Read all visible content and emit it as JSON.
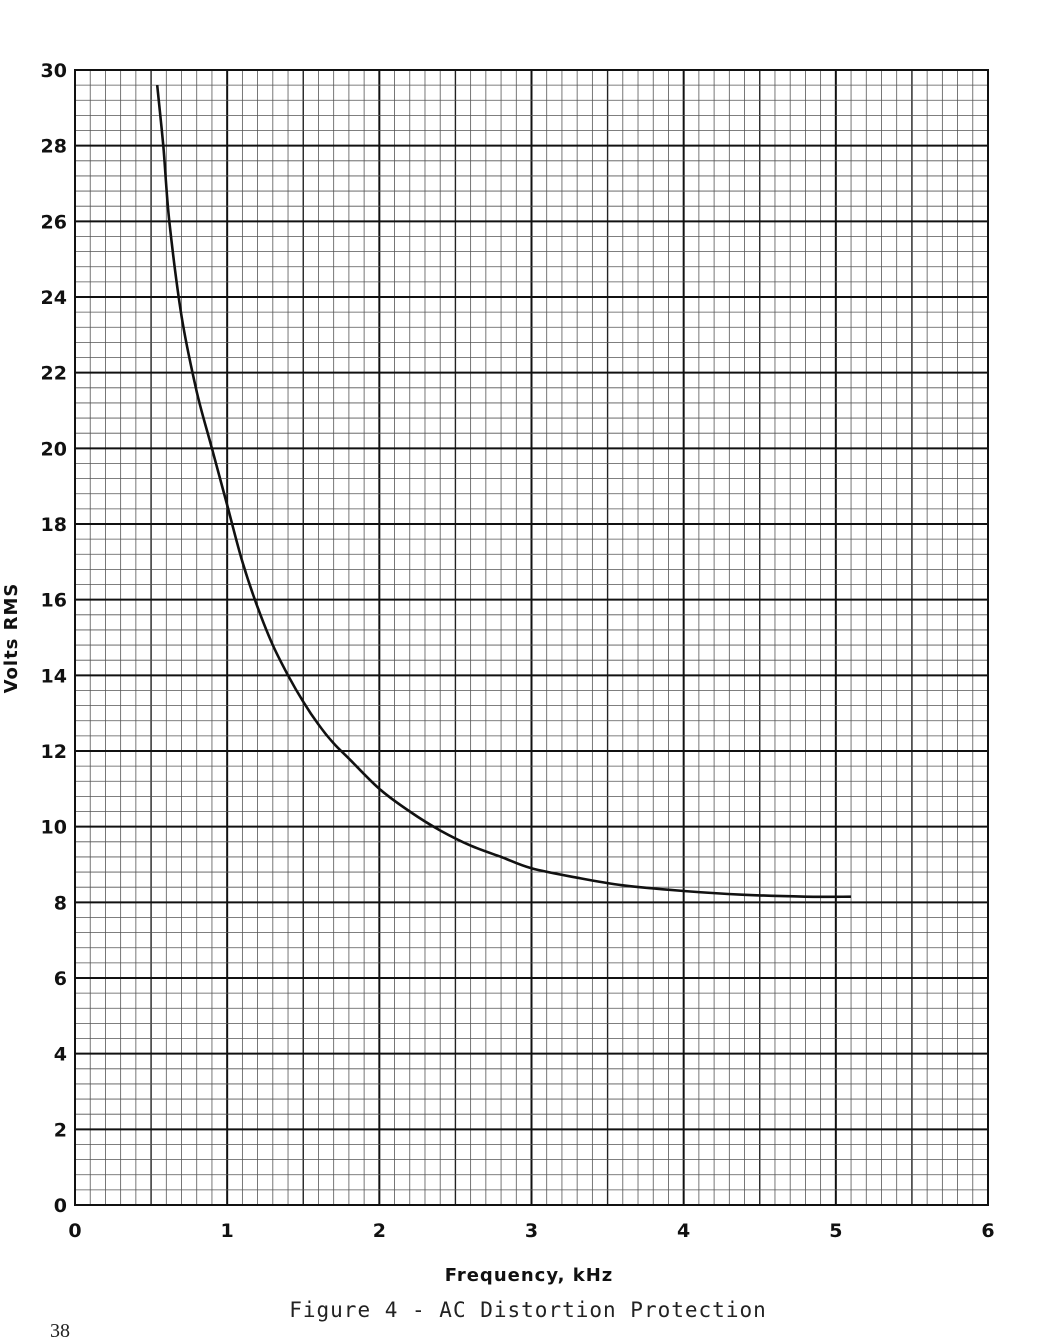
{
  "chart_data": {
    "type": "line",
    "xlabel": "Frequency, kHz",
    "ylabel": "Volts RMS",
    "xlim": [
      0,
      6
    ],
    "ylim": [
      0,
      30
    ],
    "xticks": [
      0,
      1,
      2,
      3,
      4,
      5,
      6
    ],
    "yticks": [
      0,
      2,
      4,
      6,
      8,
      10,
      12,
      14,
      16,
      18,
      20,
      22,
      24,
      26,
      28,
      30
    ],
    "grid": true,
    "series": [
      {
        "x": [
          0.54,
          0.58,
          0.62,
          0.7,
          0.8,
          0.9,
          1.0,
          1.1,
          1.2,
          1.3,
          1.4,
          1.5,
          1.6,
          1.7,
          1.8,
          2.0,
          2.2,
          2.4,
          2.6,
          2.8,
          3.0,
          3.3,
          3.6,
          4.0,
          4.4,
          4.8,
          5.1
        ],
        "y": [
          29.6,
          28.0,
          26.0,
          23.5,
          21.5,
          20.0,
          18.5,
          17.0,
          15.8,
          14.8,
          14.0,
          13.3,
          12.7,
          12.2,
          11.8,
          11.0,
          10.4,
          9.9,
          9.5,
          9.2,
          8.9,
          8.65,
          8.45,
          8.3,
          8.2,
          8.15,
          8.15
        ]
      }
    ]
  },
  "caption": "Figure 4 - AC Distortion Protection",
  "page_number": "38"
}
